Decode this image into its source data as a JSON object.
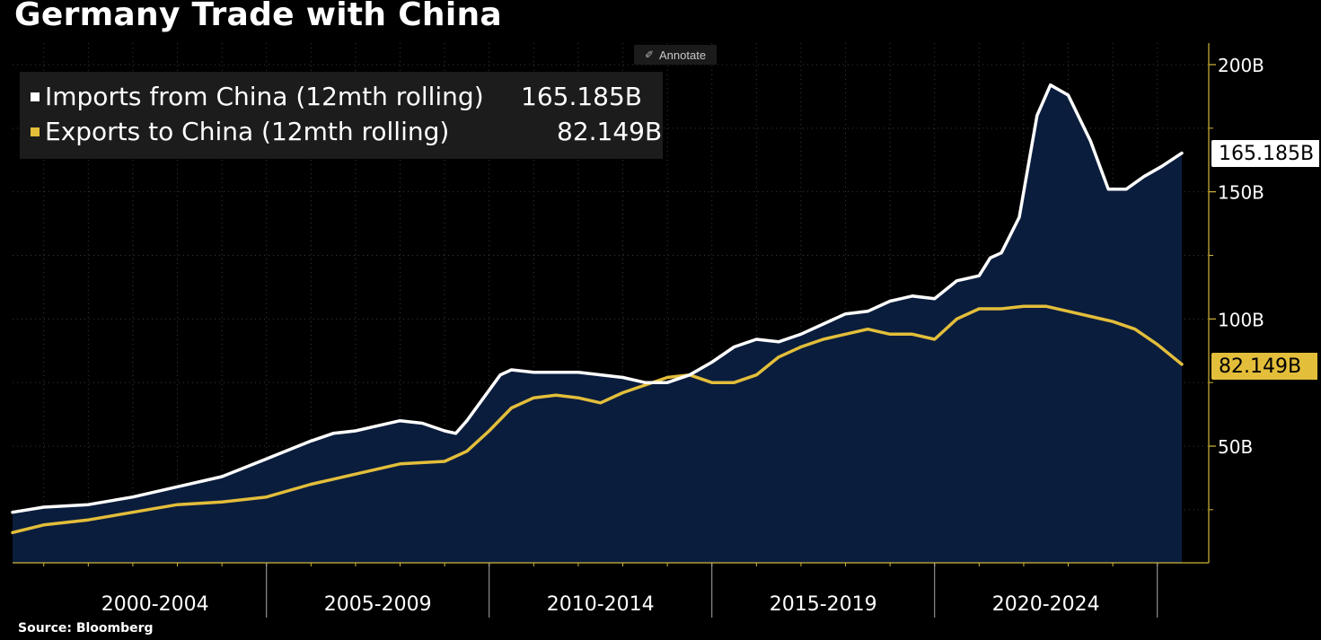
{
  "title": "Germany Trade with China",
  "source": "Source: Bloomberg",
  "annotate_label": "Annotate",
  "colors": {
    "imports_line": "#ffffff",
    "exports_line": "#e3be3a",
    "area_fill": "#0a1d3d",
    "axis": "#d4b73a",
    "grid": "#3a3a3a",
    "background": "#000000"
  },
  "legend": [
    {
      "label": "Imports from China (12mth rolling)",
      "value": "165.185B",
      "color": "#ffffff"
    },
    {
      "label": "Exports to China (12mth rolling)",
      "value": "82.149B",
      "color": "#e3be3a"
    }
  ],
  "last_value_labels": {
    "imports": "165.185B",
    "exports": "82.149B"
  },
  "chart_data": {
    "type": "area",
    "title": "Germany Trade with China",
    "xlabel": "",
    "ylabel": "",
    "x_range": [
      1999.3,
      2025.55
    ],
    "ylim": [
      10,
      205
    ],
    "y_ticks": [
      {
        "value": 200,
        "label": "200B"
      },
      {
        "value": 150,
        "label": "150B"
      },
      {
        "value": 100,
        "label": "100B"
      },
      {
        "value": 50,
        "label": "50B"
      }
    ],
    "y_minor_ticks": [
      175,
      125,
      75,
      25
    ],
    "x_groups": [
      {
        "label": "2000-2004",
        "start": 2000,
        "end": 2005
      },
      {
        "label": "2005-2009",
        "start": 2005,
        "end": 2010
      },
      {
        "label": "2010-2014",
        "start": 2010,
        "end": 2015
      },
      {
        "label": "2015-2019",
        "start": 2015,
        "end": 2020
      },
      {
        "label": "2020-2024",
        "start": 2020,
        "end": 2025
      }
    ],
    "x_group_boundaries": [
      2005,
      2010,
      2015,
      2020,
      2025
    ],
    "grid": true,
    "series": [
      {
        "name": "Imports from China (12mth rolling)",
        "last_value": 165.185,
        "x": [
          1999.3,
          2000,
          2001,
          2002,
          2003,
          2004,
          2005,
          2006,
          2006.5,
          2007,
          2007.5,
          2008,
          2008.5,
          2009,
          2009.25,
          2009.5,
          2010,
          2010.25,
          2010.5,
          2011,
          2012,
          2013,
          2013.5,
          2014,
          2014.5,
          2015,
          2015.5,
          2016,
          2016.5,
          2017,
          2017.5,
          2018,
          2018.5,
          2019,
          2019.25,
          2019.5,
          2020,
          2020.5,
          2021,
          2021.25,
          2021.5,
          2021.9,
          2022.1,
          2022.3,
          2022.6,
          2023,
          2023.5,
          2023.9,
          2024.3,
          2024.7,
          2025.1,
          2025.55
        ],
        "values": [
          24,
          26,
          27,
          30,
          34,
          38,
          45,
          52,
          55,
          56,
          58,
          60,
          59,
          56,
          55,
          60,
          72,
          78,
          80,
          79,
          79,
          77,
          75,
          75,
          78,
          83,
          89,
          92,
          91,
          94,
          98,
          102,
          103,
          107,
          108,
          109,
          108,
          115,
          117,
          124,
          126,
          140,
          160,
          180,
          192,
          188,
          170,
          151,
          151,
          156,
          160,
          165.185
        ]
      },
      {
        "name": "Exports to China (12mth rolling)",
        "last_value": 82.149,
        "x": [
          1999.3,
          2000,
          2001,
          2002,
          2003,
          2004,
          2005,
          2006,
          2007,
          2008,
          2009,
          2009.5,
          2010,
          2010.5,
          2011,
          2011.5,
          2012,
          2012.5,
          2013,
          2013.5,
          2014,
          2014.5,
          2015,
          2015.5,
          2016,
          2016.5,
          2017,
          2017.5,
          2018,
          2018.5,
          2019,
          2019.5,
          2020,
          2020.5,
          2021,
          2021.5,
          2022,
          2022.5,
          2023,
          2023.5,
          2024,
          2024.5,
          2025,
          2025.55
        ],
        "values": [
          16,
          19,
          21,
          24,
          27,
          28,
          30,
          35,
          39,
          43,
          44,
          48,
          56,
          65,
          69,
          70,
          69,
          67,
          71,
          74,
          77,
          78,
          75,
          75,
          78,
          85,
          89,
          92,
          94,
          96,
          94,
          94,
          92,
          100,
          104,
          104,
          105,
          105,
          103,
          101,
          99,
          96,
          90,
          82.149
        ]
      }
    ]
  }
}
